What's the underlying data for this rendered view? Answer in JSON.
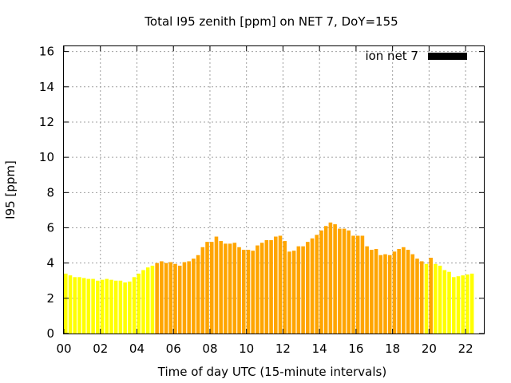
{
  "chart_data": {
    "type": "bar",
    "title": "Total I95 zenith [ppm] on NET 7, DoY=155",
    "xlabel": "Time of day UTC (15-minute intervals)",
    "ylabel": "I95 [ppm]",
    "xlim": [
      0,
      23
    ],
    "ylim": [
      0,
      16.3
    ],
    "x_ticks": [
      "00",
      "02",
      "04",
      "06",
      "08",
      "10",
      "12",
      "14",
      "16",
      "18",
      "20",
      "22"
    ],
    "y_ticks": [
      "0",
      "2",
      "4",
      "6",
      "8",
      "10",
      "12",
      "14",
      "16"
    ],
    "grid": true,
    "legend": {
      "position": "top-right",
      "entries": [
        {
          "label": "ion net 7",
          "color": "#000000"
        }
      ]
    },
    "colors": {
      "low": "#ffff00",
      "high": "#ffa500",
      "legend": "#000000"
    },
    "bin_hours": 0.25,
    "values": [
      3.4,
      3.3,
      3.2,
      3.2,
      3.15,
      3.1,
      3.1,
      3.0,
      3.05,
      3.1,
      3.05,
      3.0,
      3.0,
      2.9,
      2.95,
      3.2,
      3.4,
      3.6,
      3.75,
      3.85,
      4.0,
      4.1,
      4.0,
      4.05,
      3.95,
      3.85,
      4.05,
      4.1,
      4.25,
      4.45,
      4.9,
      5.2,
      5.2,
      5.5,
      5.25,
      5.1,
      5.1,
      5.15,
      4.9,
      4.75,
      4.75,
      4.7,
      5.0,
      5.15,
      5.3,
      5.3,
      5.5,
      5.55,
      5.25,
      4.65,
      4.7,
      4.95,
      4.95,
      5.2,
      5.4,
      5.6,
      5.85,
      6.1,
      6.3,
      6.2,
      5.95,
      5.95,
      5.85,
      5.55,
      5.55,
      5.55,
      4.95,
      4.75,
      4.8,
      4.45,
      4.5,
      4.45,
      4.65,
      4.8,
      4.9,
      4.75,
      4.5,
      4.25,
      4.1,
      3.95,
      4.3,
      3.95,
      3.85,
      3.6,
      3.5,
      3.2,
      3.25,
      3.3,
      3.35,
      3.4
    ],
    "bar_colors": [
      "low",
      "low",
      "low",
      "low",
      "low",
      "low",
      "low",
      "low",
      "low",
      "low",
      "low",
      "low",
      "low",
      "low",
      "low",
      "low",
      "low",
      "low",
      "low",
      "low",
      "high",
      "high",
      "high",
      "high",
      "high",
      "high",
      "high",
      "high",
      "high",
      "high",
      "high",
      "high",
      "high",
      "high",
      "high",
      "high",
      "high",
      "high",
      "high",
      "high",
      "high",
      "high",
      "high",
      "high",
      "high",
      "high",
      "high",
      "high",
      "high",
      "high",
      "high",
      "high",
      "high",
      "high",
      "high",
      "high",
      "high",
      "high",
      "high",
      "high",
      "high",
      "high",
      "high",
      "high",
      "high",
      "high",
      "high",
      "high",
      "high",
      "high",
      "high",
      "high",
      "high",
      "high",
      "high",
      "high",
      "high",
      "high",
      "high",
      "low",
      "high",
      "low",
      "low",
      "low",
      "low",
      "low",
      "low",
      "low",
      "low",
      "low"
    ]
  }
}
